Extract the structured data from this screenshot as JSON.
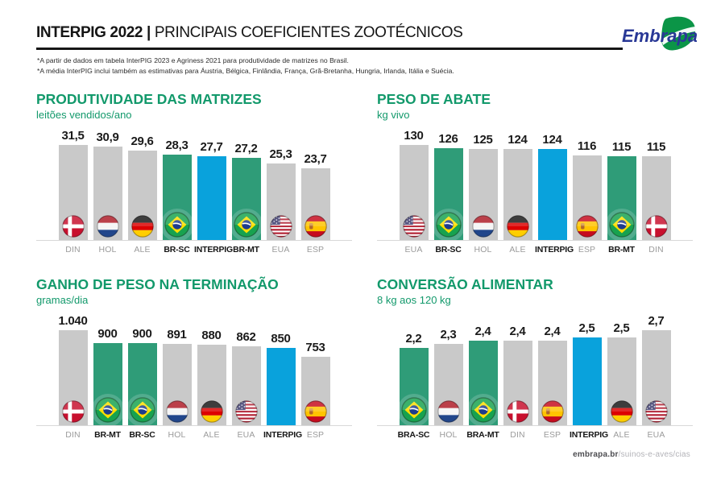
{
  "header": {
    "title_bold": "INTERPIG 2022 |",
    "title_rest": "PRINCIPAIS COEFICIENTES ZOOTÉCNICOS",
    "logo_text": "Embrapa",
    "footnotes": [
      "*A partir de dados em tabela InterPIG 2023 e Agriness 2021 para produtividade de matrizes no Brasil.",
      "*A média InterPIG inclui também as estimativas para Áustria, Bélgica, Finlândia, França, Grã-Bretanha, Hungria, Irlanda, Itália e Suécia."
    ]
  },
  "footer": {
    "site": "embrapa.br",
    "path": "/suinos-e-aves/cias"
  },
  "colors": {
    "title_green": "#12996b",
    "bar_green": "#2f9c78",
    "bar_blue": "#09a2dc",
    "bar_gray": "#c9c9c9",
    "value_text": "#1b1b1b",
    "label_gray": "#9b9b9b"
  },
  "chart_data": [
    {
      "type": "bar",
      "title": "PRODUTIVIDADE DAS MATRIZES",
      "subtitle": "leitões vendidos/ano",
      "categories": [
        "DIN",
        "HOL",
        "ALE",
        "BR-SC",
        "INTERPIG",
        "BR-MT",
        "EUA",
        "ESP"
      ],
      "values": [
        31.5,
        30.9,
        29.6,
        28.3,
        27.7,
        27.2,
        25.3,
        23.7
      ],
      "values_display": [
        "31,5",
        "30,9",
        "29,6",
        "28,3",
        "27,7",
        "27,2",
        "25,3",
        "23,7"
      ],
      "flags": [
        "din",
        "hol",
        "ale",
        "bra",
        null,
        "bra",
        "eua",
        "esp"
      ],
      "bar_colors": [
        "gray",
        "gray",
        "gray",
        "green",
        "blue",
        "green",
        "gray",
        "gray"
      ],
      "highlight": [
        false,
        false,
        false,
        true,
        true,
        true,
        false,
        false
      ],
      "ylim": [
        0,
        31.5
      ],
      "grid": false,
      "legend": false
    },
    {
      "type": "bar",
      "title": "PESO DE ABATE",
      "subtitle": "kg vivo",
      "categories": [
        "EUA",
        "BR-SC",
        "HOL",
        "ALE",
        "INTERPIG",
        "ESP",
        "BR-MT",
        "DIN"
      ],
      "values": [
        130,
        126,
        125,
        124,
        124,
        116,
        115,
        115
      ],
      "values_display": [
        "130",
        "126",
        "125",
        "124",
        "124",
        "116",
        "115",
        "115"
      ],
      "flags": [
        "eua",
        "bra",
        "hol",
        "ale",
        null,
        "esp",
        "bra",
        "din"
      ],
      "bar_colors": [
        "gray",
        "green",
        "gray",
        "gray",
        "blue",
        "gray",
        "green",
        "gray"
      ],
      "highlight": [
        false,
        true,
        false,
        false,
        true,
        false,
        true,
        false
      ],
      "ylim": [
        0,
        130
      ],
      "grid": false,
      "legend": false
    },
    {
      "type": "bar",
      "title": "GANHO DE PESO NA TERMINAÇÃO",
      "subtitle": "gramas/dia",
      "categories": [
        "DIN",
        "BR-MT",
        "BR-SC",
        "HOL",
        "ALE",
        "EUA",
        "INTERPIG",
        "ESP"
      ],
      "values": [
        1040,
        900,
        900,
        891,
        880,
        862,
        850,
        753
      ],
      "values_display": [
        "1.040",
        "900",
        "900",
        "891",
        "880",
        "862",
        "850",
        "753"
      ],
      "flags": [
        "din",
        "bra",
        "bra",
        "hol",
        "ale",
        "eua",
        null,
        "esp"
      ],
      "bar_colors": [
        "gray",
        "green",
        "green",
        "gray",
        "gray",
        "gray",
        "blue",
        "gray"
      ],
      "highlight": [
        false,
        true,
        true,
        false,
        false,
        false,
        true,
        false
      ],
      "ylim": [
        0,
        1040
      ],
      "grid": false,
      "legend": false
    },
    {
      "type": "bar",
      "title": "CONVERSÃO ALIMENTAR",
      "subtitle": "8 kg aos 120 kg",
      "categories": [
        "BRA-SC",
        "HOL",
        "BRA-MT",
        "DIN",
        "ESP",
        "INTERPIG",
        "ALE",
        "EUA"
      ],
      "values": [
        2.2,
        2.3,
        2.4,
        2.4,
        2.4,
        2.5,
        2.5,
        2.7
      ],
      "values_display": [
        "2,2",
        "2,3",
        "2,4",
        "2,4",
        "2,4",
        "2,5",
        "2,5",
        "2,7"
      ],
      "flags": [
        "bra",
        "hol",
        "bra",
        "din",
        "esp",
        null,
        "ale",
        "eua"
      ],
      "bar_colors": [
        "green",
        "gray",
        "green",
        "gray",
        "gray",
        "blue",
        "gray",
        "gray"
      ],
      "highlight": [
        true,
        false,
        true,
        false,
        false,
        true,
        false,
        false
      ],
      "ylim": [
        0,
        2.7
      ],
      "grid": false,
      "legend": false
    }
  ]
}
